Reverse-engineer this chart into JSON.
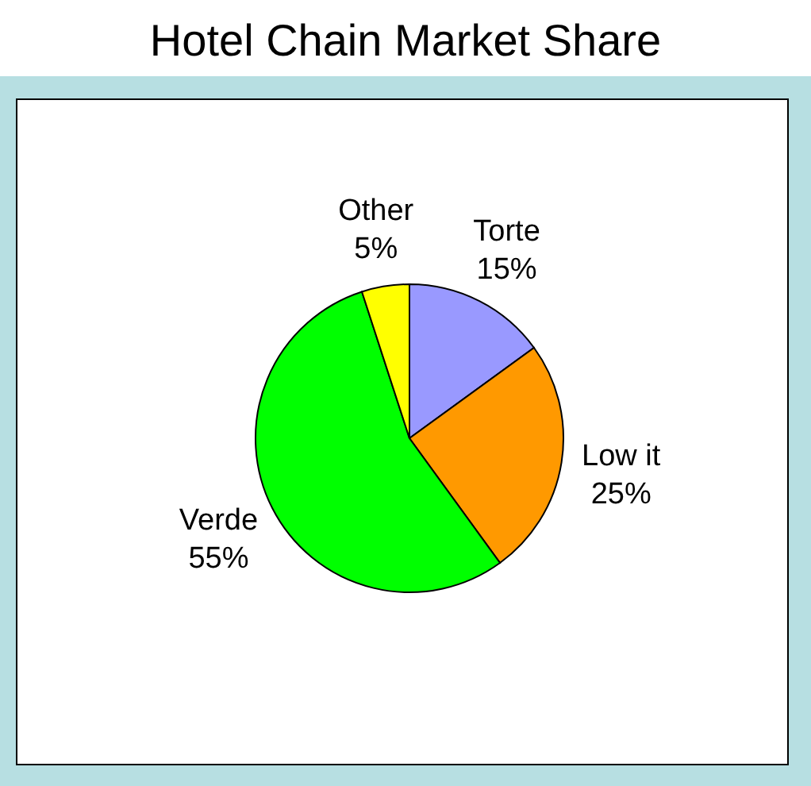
{
  "chart_data": {
    "type": "pie",
    "title": "Hotel Chain Market Share",
    "categories": [
      "Torte",
      "Low it",
      "Verde",
      "Other"
    ],
    "values": [
      15,
      25,
      55,
      5
    ],
    "value_labels": [
      "15%",
      "25%",
      "55%",
      "5%"
    ],
    "colors": [
      "#9999ff",
      "#ff9900",
      "#00ff00",
      "#ffff00"
    ],
    "legend": false
  }
}
